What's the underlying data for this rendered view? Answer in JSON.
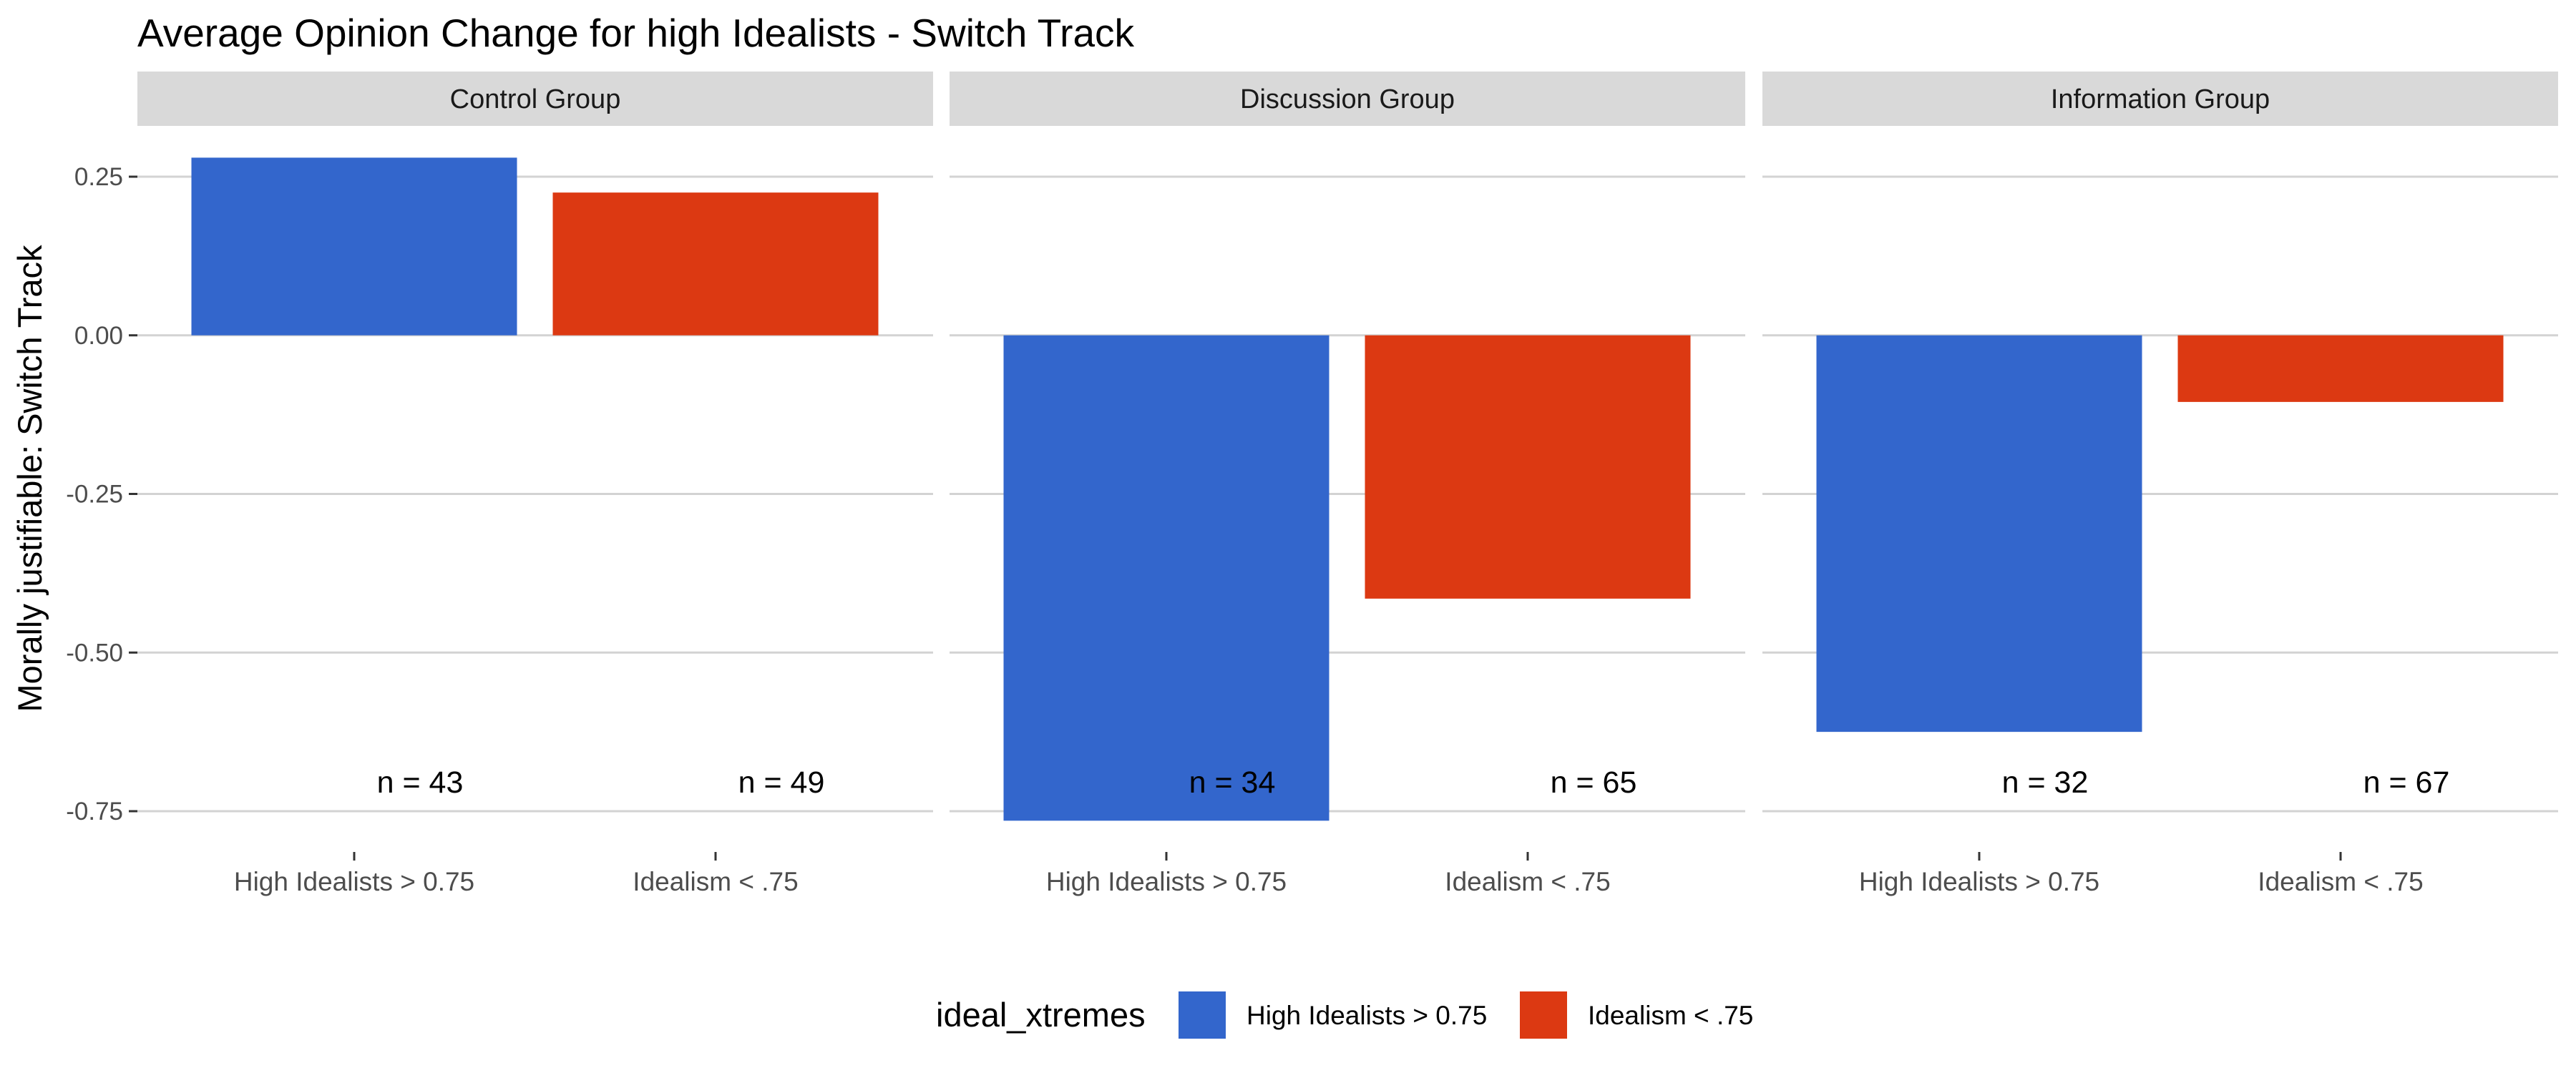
{
  "chart_data": {
    "type": "bar",
    "title": "Average Opinion Change for high Idealists - Switch Track",
    "ylabel": "Morally justifiable: Switch Track",
    "xlabel": "",
    "ylim": [
      -0.76,
      0.285
    ],
    "yticks": [
      0.25,
      0.0,
      -0.25,
      -0.5,
      -0.75
    ],
    "ytick_labels": [
      "0.25",
      "0.00",
      "-0.25",
      "-0.50",
      "-0.75"
    ],
    "categories": [
      "High Idealists > 0.75",
      "Idealism < .75"
    ],
    "grid": true,
    "legend": {
      "title": "ideal_xtremes",
      "position": "bottom",
      "entries": [
        {
          "label": "High Idealists > 0.75",
          "color": "#3366cc"
        },
        {
          "label": "Idealism < .75",
          "color": "#dc3912"
        }
      ]
    },
    "facets": [
      {
        "label": "Control Group",
        "values": [
          0.28,
          0.225
        ],
        "n_labels": [
          "n = 43",
          "n = 49"
        ]
      },
      {
        "label": "Discussion Group",
        "values": [
          -0.765,
          -0.415
        ],
        "n_labels": [
          "n = 34",
          "n = 65"
        ]
      },
      {
        "label": "Information Group",
        "values": [
          -0.625,
          -0.105
        ],
        "n_labels": [
          "n = 32",
          "n = 67"
        ]
      }
    ]
  }
}
